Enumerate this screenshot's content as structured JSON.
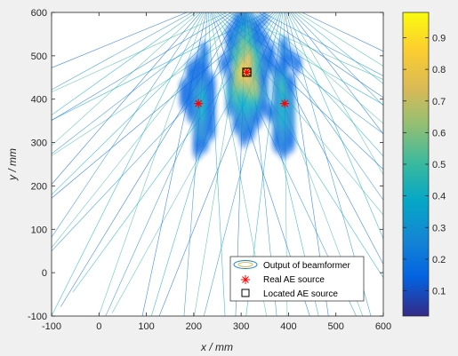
{
  "chart_data": {
    "type": "contour",
    "xlabel": "x / mm",
    "ylabel": "y / mm",
    "xlim": [
      -100,
      600
    ],
    "ylim": [
      -100,
      600
    ],
    "xticks": [
      -100,
      0,
      100,
      200,
      300,
      400,
      500,
      600
    ],
    "yticks": [
      -100,
      0,
      100,
      200,
      300,
      400,
      500,
      600
    ],
    "colorbar": {
      "range": [
        0.02,
        0.98
      ],
      "ticks": [
        0.1,
        0.2,
        0.3,
        0.4,
        0.5,
        0.6,
        0.7,
        0.8,
        0.9
      ],
      "colormap": "parula"
    },
    "series": [
      {
        "name": "Output of beamformer",
        "kind": "contour"
      },
      {
        "name": "Real AE source",
        "kind": "marker",
        "marker": "asterisk",
        "color": "#ff0000",
        "points": [
          {
            "x": 210,
            "y": 390
          },
          {
            "x": 312,
            "y": 462
          },
          {
            "x": 392,
            "y": 390
          }
        ]
      },
      {
        "name": "Located AE source",
        "kind": "marker",
        "marker": "square",
        "color": "#000000",
        "points": [
          {
            "x": 312,
            "y": 462
          }
        ]
      }
    ],
    "legend_position": "bottom-right"
  }
}
